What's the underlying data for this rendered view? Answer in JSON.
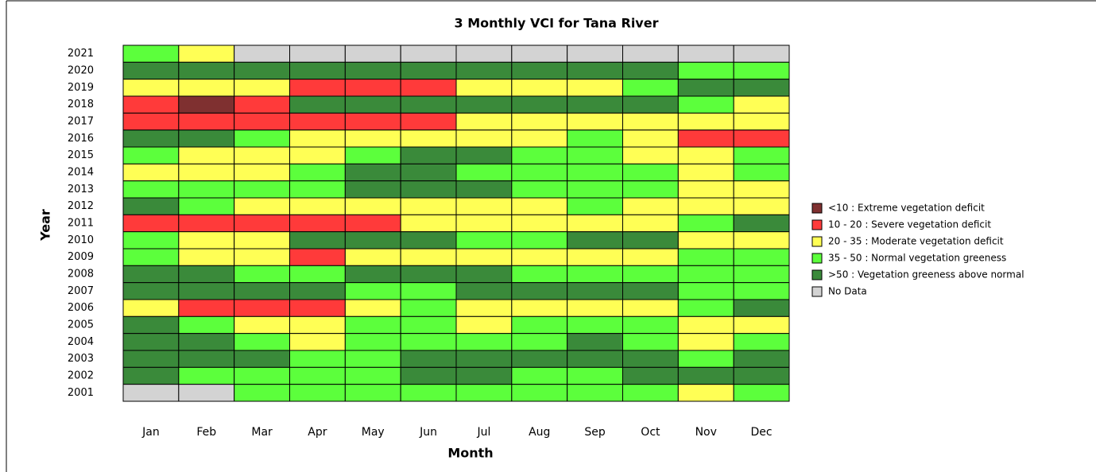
{
  "chart_data": {
    "type": "heatmap",
    "title": "3 Monthly VCI for Tana River",
    "xlabel": "Month",
    "ylabel": "Year",
    "columns": [
      "Jan",
      "Feb",
      "Mar",
      "Apr",
      "May",
      "Jun",
      "Jul",
      "Aug",
      "Sep",
      "Oct",
      "Nov",
      "Dec"
    ],
    "rows": [
      2021,
      2020,
      2019,
      2018,
      2017,
      2016,
      2015,
      2014,
      2013,
      2012,
      2011,
      2010,
      2009,
      2008,
      2007,
      2006,
      2005,
      2004,
      2003,
      2002,
      2001
    ],
    "legend": [
      {
        "label": "<10 : Extreme vegetation deficit",
        "color": "#7f3030"
      },
      {
        "label": "10 - 20 : Severe vegetation deficit",
        "color": "#ff3a3a"
      },
      {
        "label": "20 - 35 : Moderate vegetation deficit",
        "color": "#ffff55"
      },
      {
        "label": "35 - 50 : Normal vegetation greeness",
        "color": "#5cff3c"
      },
      {
        "label": ">50 : Vegetation greeness above normal",
        "color": "#3a8a3a"
      },
      {
        "label": "No Data",
        "color": "#d3d3d3"
      }
    ],
    "cells": [
      [
        3,
        2,
        5,
        5,
        5,
        5,
        5,
        5,
        5,
        5,
        5,
        5
      ],
      [
        4,
        4,
        4,
        4,
        4,
        4,
        4,
        4,
        4,
        4,
        3,
        3
      ],
      [
        2,
        2,
        2,
        1,
        1,
        1,
        2,
        2,
        2,
        3,
        4,
        4
      ],
      [
        1,
        0,
        1,
        4,
        4,
        4,
        4,
        4,
        4,
        4,
        3,
        2
      ],
      [
        1,
        1,
        1,
        1,
        1,
        1,
        2,
        2,
        2,
        2,
        2,
        2
      ],
      [
        4,
        4,
        3,
        2,
        2,
        2,
        2,
        2,
        3,
        2,
        1,
        1
      ],
      [
        3,
        2,
        2,
        2,
        3,
        4,
        4,
        3,
        3,
        2,
        2,
        3
      ],
      [
        2,
        2,
        2,
        3,
        4,
        4,
        3,
        3,
        3,
        3,
        2,
        3
      ],
      [
        3,
        3,
        3,
        3,
        4,
        4,
        4,
        3,
        3,
        3,
        2,
        2
      ],
      [
        4,
        3,
        2,
        2,
        2,
        2,
        2,
        2,
        3,
        2,
        2,
        2
      ],
      [
        1,
        1,
        1,
        1,
        1,
        2,
        2,
        2,
        2,
        2,
        3,
        4
      ],
      [
        3,
        2,
        2,
        4,
        4,
        4,
        3,
        3,
        4,
        4,
        2,
        2
      ],
      [
        3,
        2,
        2,
        1,
        2,
        2,
        2,
        2,
        2,
        2,
        3,
        3
      ],
      [
        4,
        4,
        3,
        3,
        4,
        4,
        4,
        3,
        3,
        3,
        3,
        3
      ],
      [
        4,
        4,
        4,
        4,
        3,
        3,
        4,
        4,
        4,
        4,
        3,
        3
      ],
      [
        2,
        1,
        1,
        1,
        2,
        3,
        2,
        2,
        2,
        2,
        3,
        4
      ],
      [
        4,
        3,
        2,
        2,
        3,
        3,
        2,
        3,
        3,
        3,
        2,
        2
      ],
      [
        4,
        4,
        3,
        2,
        3,
        3,
        3,
        3,
        4,
        3,
        2,
        3
      ],
      [
        4,
        4,
        4,
        3,
        3,
        4,
        4,
        4,
        4,
        4,
        3,
        4
      ],
      [
        4,
        3,
        3,
        3,
        3,
        4,
        4,
        3,
        3,
        4,
        4,
        4
      ],
      [
        5,
        5,
        3,
        3,
        3,
        3,
        3,
        3,
        3,
        3,
        2,
        3
      ]
    ]
  }
}
